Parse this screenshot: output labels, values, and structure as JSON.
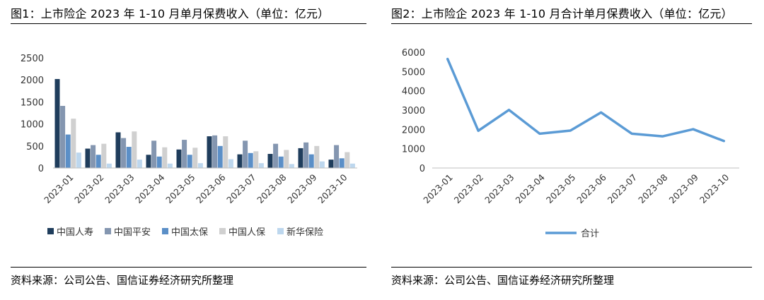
{
  "left_panel": {
    "title": "图1：上市险企 2023 年 1-10 月单月保费收入（单位：亿元）",
    "source": "资料来源：公司公告、国信证券经济研究所整理"
  },
  "right_panel": {
    "title": "图2：上市险企 2023 年 1-10 月合计单月保费收入（单位：亿元）",
    "source": "资料来源：公司公告、国信证券经济研究所整理"
  },
  "chart_data": [
    {
      "type": "bar",
      "title": "图1：上市险企 2023 年 1-10 月单月保费收入（单位：亿元）",
      "categories": [
        "2023-01",
        "2023-02",
        "2023-03",
        "2023-04",
        "2023-05",
        "2023-06",
        "2023-07",
        "2023-08",
        "2023-09",
        "2023-10"
      ],
      "series": [
        {
          "name": "中国人寿",
          "color": "#1f3d5c",
          "values": [
            2020,
            440,
            810,
            300,
            420,
            720,
            310,
            320,
            450,
            190
          ]
        },
        {
          "name": "中国平安",
          "color": "#8496b0",
          "values": [
            1410,
            520,
            680,
            620,
            640,
            740,
            620,
            550,
            580,
            520
          ]
        },
        {
          "name": "中国太保",
          "color": "#5b8fc7",
          "values": [
            760,
            300,
            480,
            260,
            300,
            500,
            340,
            260,
            310,
            220
          ]
        },
        {
          "name": "中国人保",
          "color": "#d0d0d0",
          "values": [
            1120,
            550,
            830,
            470,
            460,
            720,
            380,
            410,
            500,
            360
          ]
        },
        {
          "name": "新华保险",
          "color": "#bdd7ee",
          "values": [
            350,
            100,
            190,
            100,
            110,
            200,
            110,
            90,
            150,
            100
          ]
        }
      ],
      "ylim": [
        0,
        2500
      ],
      "yticks": [
        0,
        500,
        1000,
        1500,
        2000,
        2500
      ],
      "legend_position": "bottom",
      "grid": false
    },
    {
      "type": "line",
      "title": "图2：上市险企 2023 年 1-10 月合计单月保费收入（单位：亿元）",
      "categories": [
        "2023-01",
        "2023-02",
        "2023-03",
        "2023-04",
        "2023-05",
        "2023-06",
        "2023-07",
        "2023-08",
        "2023-09",
        "2023-10"
      ],
      "series": [
        {
          "name": "合计",
          "color": "#5b9bd5",
          "values": [
            5650,
            1930,
            3010,
            1780,
            1940,
            2880,
            1780,
            1640,
            2010,
            1400
          ]
        }
      ],
      "ylim": [
        0,
        6000
      ],
      "yticks": [
        0,
        1000,
        2000,
        3000,
        4000,
        5000,
        6000
      ],
      "legend_position": "bottom",
      "grid": false
    }
  ]
}
